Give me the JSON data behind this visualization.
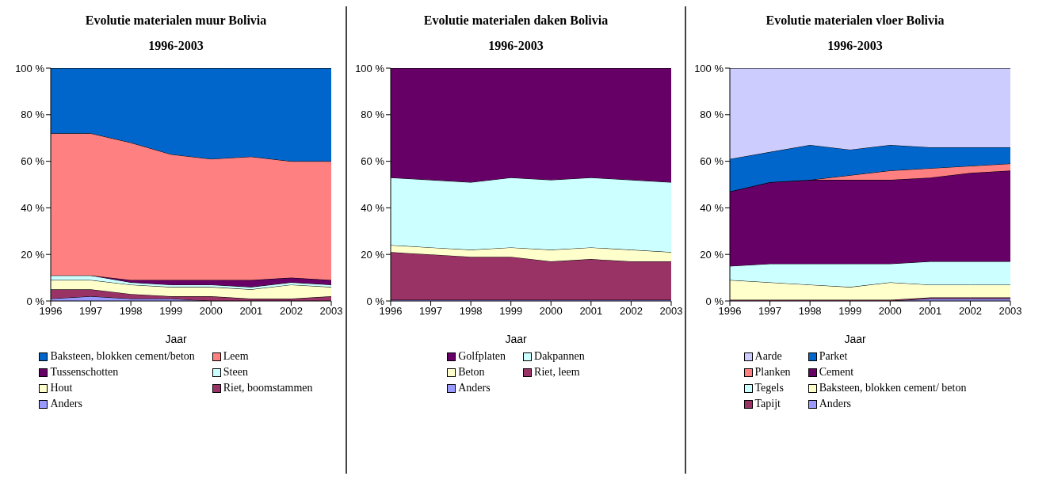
{
  "chart_data": [
    {
      "type": "area",
      "stacked": true,
      "title": "Evolutie materialen muur Bolivia\n1996-2003",
      "xlabel": "Jaar",
      "x": [
        1996,
        1997,
        1998,
        1999,
        2000,
        2001,
        2002,
        2003
      ],
      "xlim": [
        1996,
        2003
      ],
      "xticks": [
        1996,
        1997,
        1998,
        1999,
        2000,
        2001,
        2002,
        2003
      ],
      "ylim": [
        0,
        100
      ],
      "yticks": [
        {
          "value": 0,
          "label": "0 %"
        },
        {
          "value": 20,
          "label": "20 %"
        },
        {
          "value": 40,
          "label": "40 %"
        },
        {
          "value": 60,
          "label": "60 %"
        },
        {
          "value": 80,
          "label": "80 %"
        },
        {
          "value": 100,
          "label": "100 %"
        }
      ],
      "grid": false,
      "legend": "bottom",
      "series": [
        {
          "name": "Anders",
          "color": "#9999ff",
          "values": [
            1,
            2,
            1,
            1,
            0,
            0,
            0,
            0
          ]
        },
        {
          "name": "Riet, boomstammen",
          "color": "#993366",
          "values": [
            4,
            3,
            2,
            1,
            2,
            1,
            1,
            2
          ]
        },
        {
          "name": "Hout",
          "color": "#ffffcc",
          "values": [
            4,
            4,
            4,
            4,
            4,
            4,
            6,
            4
          ]
        },
        {
          "name": "Steen",
          "color": "#ccffff",
          "values": [
            2,
            2,
            1,
            1,
            1,
            1,
            1,
            1
          ]
        },
        {
          "name": "Tussenschotten",
          "color": "#660066",
          "values": [
            0,
            0,
            1,
            2,
            2,
            3,
            2,
            2
          ]
        },
        {
          "name": "Leem",
          "color": "#ff8080",
          "values": [
            61,
            61,
            59,
            54,
            52,
            53,
            50,
            51
          ]
        },
        {
          "name": "Baksteen, blokken cement/beton",
          "color": "#0066cc",
          "values": [
            28,
            28,
            32,
            37,
            39,
            38,
            40,
            40
          ]
        }
      ]
    },
    {
      "type": "area",
      "stacked": true,
      "title": "Evolutie materialen daken Bolivia\n1996-2003",
      "xlabel": "Jaar",
      "x": [
        1996,
        1997,
        1998,
        1999,
        2000,
        2001,
        2002,
        2003
      ],
      "xlim": [
        1996,
        2003
      ],
      "xticks": [
        1996,
        1997,
        1998,
        1999,
        2000,
        2001,
        2002,
        2003
      ],
      "ylim": [
        0,
        100
      ],
      "yticks": [
        {
          "value": 0,
          "label": "0 %"
        },
        {
          "value": 20,
          "label": "20 %"
        },
        {
          "value": 40,
          "label": "40 %"
        },
        {
          "value": 60,
          "label": "60 %"
        },
        {
          "value": 80,
          "label": "80 %"
        },
        {
          "value": 100,
          "label": "100 %"
        }
      ],
      "grid": false,
      "legend": "bottom",
      "series": [
        {
          "name": "Anders",
          "color": "#9999ff",
          "values": [
            0.5,
            0.5,
            0.5,
            0.5,
            0.5,
            0.5,
            0.5,
            0.5
          ]
        },
        {
          "name": "Riet, leem",
          "color": "#993366",
          "values": [
            20.5,
            19.5,
            18.5,
            18.5,
            16.5,
            17.5,
            16.5,
            16.5
          ]
        },
        {
          "name": "Beton",
          "color": "#ffffcc",
          "values": [
            3,
            3,
            3,
            4,
            5,
            5,
            5,
            4
          ]
        },
        {
          "name": "Dakpannen",
          "color": "#ccffff",
          "values": [
            29,
            29,
            29,
            30,
            30,
            30,
            30,
            30
          ]
        },
        {
          "name": "Golfplaten",
          "color": "#660066",
          "values": [
            47,
            48,
            49,
            47,
            48,
            47,
            48,
            49
          ]
        }
      ]
    },
    {
      "type": "area",
      "stacked": true,
      "title": "Evolutie materialen vloer Bolivia\n1996-2003",
      "xlabel": "Jaar",
      "x": [
        1996,
        1997,
        1998,
        1999,
        2000,
        2001,
        2002,
        2003
      ],
      "xlim": [
        1996,
        2003
      ],
      "xticks": [
        1996,
        1997,
        1998,
        1999,
        2000,
        2001,
        2002,
        2003
      ],
      "ylim": [
        0,
        100
      ],
      "yticks": [
        {
          "value": 0,
          "label": "0 %"
        },
        {
          "value": 20,
          "label": "20 %"
        },
        {
          "value": 40,
          "label": "40 %"
        },
        {
          "value": 60,
          "label": "60 %"
        },
        {
          "value": 80,
          "label": "80 %"
        },
        {
          "value": 100,
          "label": "100 %"
        }
      ],
      "grid": false,
      "legend": "bottom",
      "series": [
        {
          "name": "Anders",
          "color": "#9999ff",
          "values": [
            0,
            0,
            0,
            0,
            0,
            1,
            1,
            1
          ]
        },
        {
          "name": "Tapijt",
          "color": "#993366",
          "values": [
            0.5,
            0.5,
            0.5,
            0.5,
            0.5,
            0.5,
            0.5,
            0.5
          ]
        },
        {
          "name": "Baksteen, blokken cement/ beton",
          "color": "#ffffcc",
          "values": [
            8.5,
            7.5,
            6.5,
            5.5,
            7.5,
            5.5,
            5.5,
            5.5
          ]
        },
        {
          "name": "Tegels",
          "color": "#ccffff",
          "values": [
            6,
            8,
            9,
            10,
            8,
            10,
            10,
            10
          ]
        },
        {
          "name": "Cement",
          "color": "#660066",
          "values": [
            32,
            35,
            36,
            36,
            36,
            36,
            38,
            39
          ]
        },
        {
          "name": "Planken",
          "color": "#ff8080",
          "values": [
            0,
            0,
            0,
            2,
            4,
            4,
            3,
            3
          ]
        },
        {
          "name": "Parket",
          "color": "#0066cc",
          "values": [
            14,
            13,
            15,
            11,
            11,
            9,
            8,
            7
          ]
        },
        {
          "name": "Aarde",
          "color": "#ccccff",
          "values": [
            39,
            36,
            33,
            35,
            33,
            34,
            34,
            34
          ]
        }
      ]
    }
  ]
}
